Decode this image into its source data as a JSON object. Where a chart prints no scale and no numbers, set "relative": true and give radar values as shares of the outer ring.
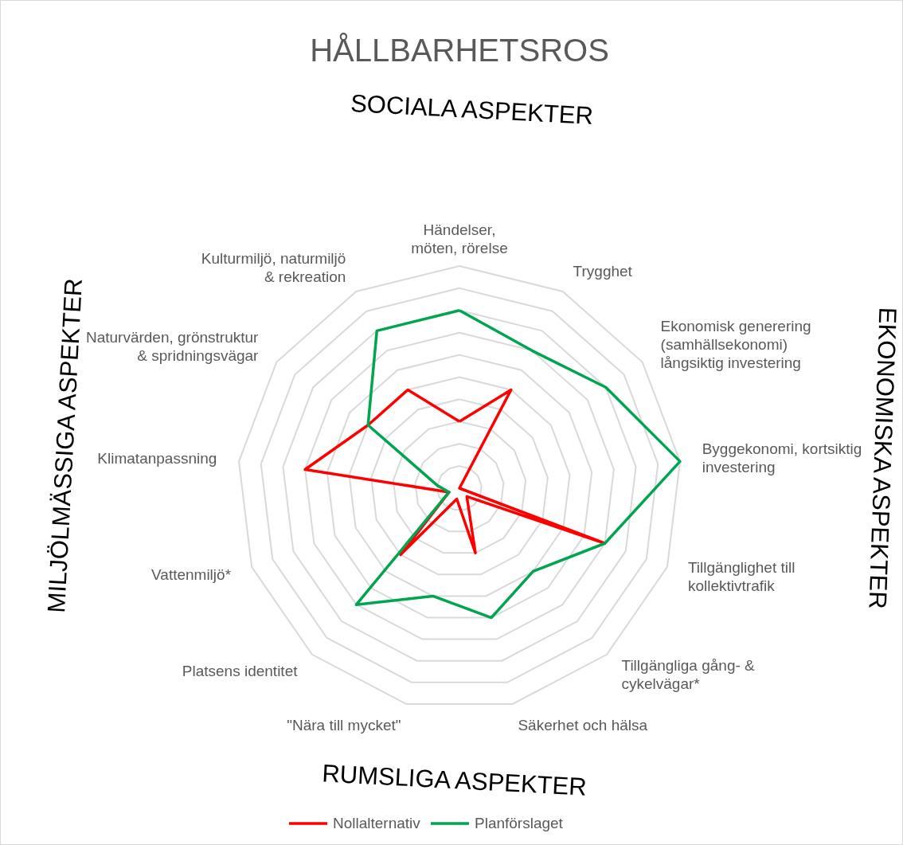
{
  "chart_data": {
    "type": "radar",
    "title": "HÅLLBARHETSROS",
    "relative": true,
    "grid": true,
    "legend": "bottom",
    "line_style": "solid",
    "marker": "none",
    "categories": [
      "Händelser, möten, rörelse",
      "Trygghet",
      "Ekonomisk generering (samhällsekonomi) långsiktig investering",
      "Byggekonomi, kortsiktig investering",
      "Tillgänglighet till kollektivtrafik",
      "Tillgängliga gång- & cykelvägar*",
      "Säkerhet och hälsa",
      "\"Nära till mycket\"",
      "Platsens identitet",
      "Vattenmiljö*",
      "Klimatanpassning",
      "Naturvärden, grönstruktur & spridningsvägar",
      "Kulturmiljö, naturmiljö & rekreation"
    ],
    "series": [
      {
        "name": "Nollalternativ",
        "color": "#ff0000",
        "values": [
          0.3,
          0.5,
          0,
          0,
          0.7,
          0.05,
          0.3,
          0.05,
          0.4,
          0.05,
          0.7,
          0.5,
          0.5
        ]
      },
      {
        "name": "Planförslaget",
        "color": "#00a550",
        "values": [
          0.8,
          0.7,
          0.8,
          1.0,
          0.7,
          0.5,
          0.6,
          0.5,
          0.7,
          0.05,
          0.1,
          0.5,
          0.8
        ]
      }
    ],
    "annotations": [
      "SOCIALA ASPEKTER",
      "EKONOMISKA ASPEKTER",
      "RUMSLIGA ASPEKTER",
      "MILJÖLMÄSSIGA ASPEKTER"
    ]
  }
}
